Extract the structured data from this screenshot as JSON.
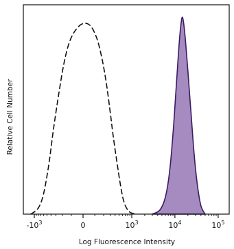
{
  "chart_data": {
    "type": "area",
    "xlabel": "Log Fluorescence Intensity",
    "ylabel": "Relative Cell Number",
    "x_scale": "biexponential",
    "xlim": [
      -1800,
      180000
    ],
    "ylim": [
      0,
      100
    ],
    "grid": false,
    "x_ticks": [
      {
        "value": -1000,
        "label": "-10",
        "sup": "3"
      },
      {
        "value": 0,
        "label": "0",
        "sup": ""
      },
      {
        "value": 1000,
        "label": "10",
        "sup": "3"
      },
      {
        "value": 10000,
        "label": "10",
        "sup": "4"
      },
      {
        "value": 100000,
        "label": "10",
        "sup": "5"
      }
    ],
    "series": [
      {
        "style": "dashed-outline",
        "stroke": "#111111",
        "x": [
          -1200,
          -800,
          -600,
          -450,
          -350,
          -250,
          -180,
          -120,
          -60,
          0,
          60,
          120,
          180,
          240,
          300,
          360,
          450,
          550,
          650,
          800,
          1000,
          1300
        ],
        "y": [
          0,
          3,
          10,
          24,
          40,
          58,
          72,
          82,
          88,
          91,
          90,
          84,
          74,
          62,
          49,
          37,
          24,
          13,
          6,
          2,
          0.5,
          0
        ]
      },
      {
        "style": "filled",
        "fill": "#a58bc0",
        "stroke": "#3a1c62",
        "x": [
          3000,
          4500,
          6000,
          7500,
          9000,
          10500,
          12000,
          13500,
          15000,
          17000,
          20000,
          24000,
          28000,
          33000,
          40000,
          50000
        ],
        "y": [
          0,
          2,
          8,
          20,
          38,
          58,
          76,
          89,
          94,
          86,
          68,
          46,
          28,
          14,
          4,
          0
        ]
      }
    ]
  }
}
